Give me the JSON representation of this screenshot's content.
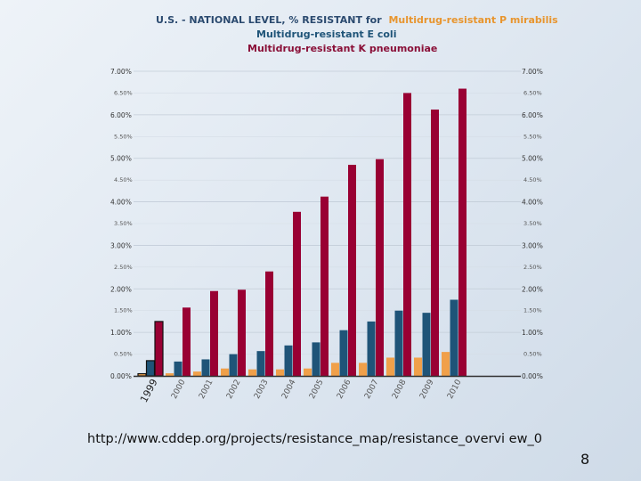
{
  "chart_data": {
    "type": "bar",
    "title": {
      "prefix": "U.S. - NATIONAL LEVEL, % RESISTANT for",
      "line1": "Multidrug-resistant P mirabilis",
      "line2": "Multidrug-resistant E coli",
      "line3": "Multidrug-resistant K pneumoniae"
    },
    "categories": [
      "1999",
      "2000",
      "2001",
      "2002",
      "2003",
      "2004",
      "2005",
      "2006",
      "2007",
      "2008",
      "2009",
      "2010"
    ],
    "series": [
      {
        "name": "Multidrug-resistant P mirabilis",
        "color": "#f0a04a",
        "values": [
          0.05,
          0.06,
          0.1,
          0.17,
          0.15,
          0.15,
          0.17,
          0.3,
          0.3,
          0.42,
          0.42,
          0.55
        ]
      },
      {
        "name": "Multidrug-resistant E coli",
        "color": "#1f5478",
        "values": [
          0.35,
          0.33,
          0.38,
          0.5,
          0.57,
          0.7,
          0.77,
          1.05,
          1.25,
          1.5,
          1.45,
          1.75
        ]
      },
      {
        "name": "Multidrug-resistant K pneumoniae",
        "color": "#990033",
        "values": [
          1.25,
          1.57,
          1.95,
          1.98,
          2.4,
          3.77,
          4.12,
          4.85,
          4.98,
          6.5,
          6.12,
          6.6
        ]
      }
    ],
    "ylim": [
      0,
      7
    ],
    "yticks_major": [
      "0.00%",
      "1.00%",
      "2.00%",
      "3.00%",
      "4.00%",
      "5.00%",
      "6.00%",
      "7.00%"
    ],
    "yticks_minor": [
      "0.50%",
      "1.50%",
      "2.50%",
      "3.50%",
      "4.50%",
      "5.50%",
      "6.50%"
    ],
    "xlabel": "",
    "ylabel": ""
  },
  "footer": {
    "source": "http://www.cddep.org/projects/resistance_map/resistance_overvi ew_0",
    "page_number": "8"
  }
}
